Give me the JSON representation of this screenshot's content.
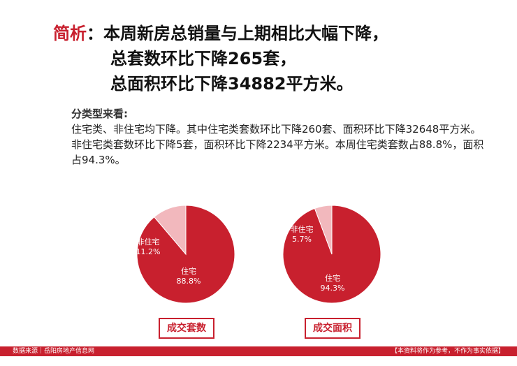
{
  "headline": {
    "lead": "简析",
    "colon": "：",
    "line1": "本周新房总销量与上期相比大幅下降，",
    "line2": "总套数环比下降265套，",
    "line3": "总面积环比下降34882平方米。"
  },
  "detail": {
    "title": "分类型来看:",
    "body": "住宅类、非住宅均下降。其中住宅类套数环比下降260套、面积环比下降32648平方米。非住宅类套数环比下降5套，面积环比下降2234平方米。本周住宅类套数占88.8%，面积占94.3%。"
  },
  "colors": {
    "main": "#c8202e",
    "light": "#f2b8bd"
  },
  "chart_data": [
    {
      "type": "pie",
      "title": "成交套数",
      "slices": [
        {
          "label": "住宅",
          "value": 88.8,
          "value_text": "88.8%",
          "color": "#c8202e"
        },
        {
          "label": "非住宅",
          "value": 11.2,
          "value_text": "11.2%",
          "color": "#f2b8bd"
        }
      ]
    },
    {
      "type": "pie",
      "title": "成交面积",
      "slices": [
        {
          "label": "住宅",
          "value": 94.3,
          "value_text": "94.3%",
          "color": "#c8202e"
        },
        {
          "label": "非住宅",
          "value": 5.7,
          "value_text": "5.7%",
          "color": "#f2b8bd"
        }
      ]
    }
  ],
  "footer": {
    "source": "数据来源｜岳阳房地产信息网",
    "disclaimer": "【本资料将作为参考，不作为事实依据】"
  }
}
